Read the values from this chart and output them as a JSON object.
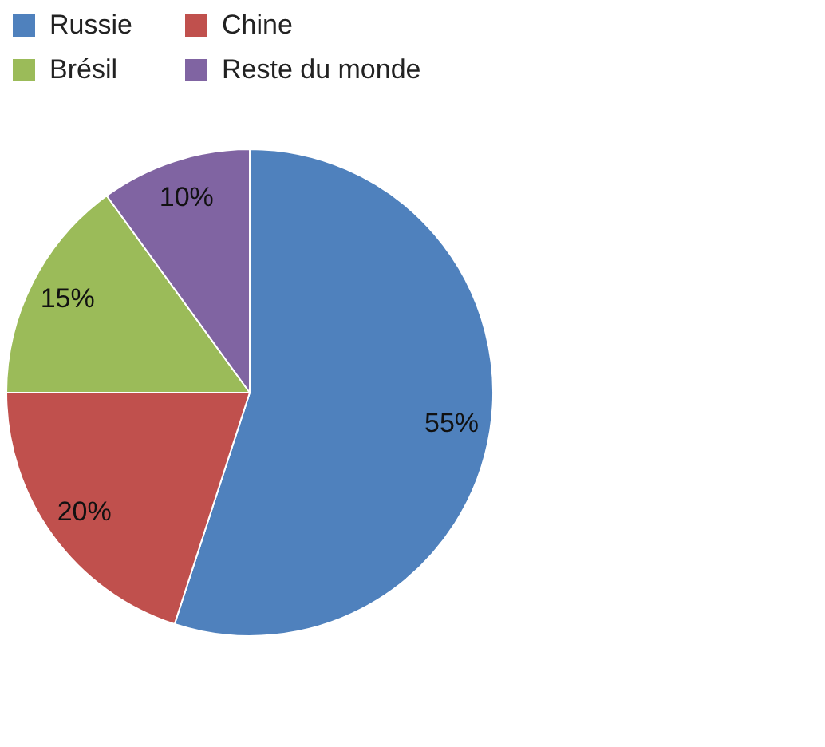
{
  "chart_data": {
    "type": "pie",
    "categories": [
      "Russie",
      "Chine",
      "Brésil",
      "Reste du monde"
    ],
    "values": [
      55,
      20,
      15,
      10
    ],
    "colors": [
      "#4f81bd",
      "#c0504d",
      "#9bbb59",
      "#8064a2"
    ],
    "value_labels": [
      "55%",
      "20%",
      "15%",
      "10%"
    ],
    "legend": "top left"
  }
}
